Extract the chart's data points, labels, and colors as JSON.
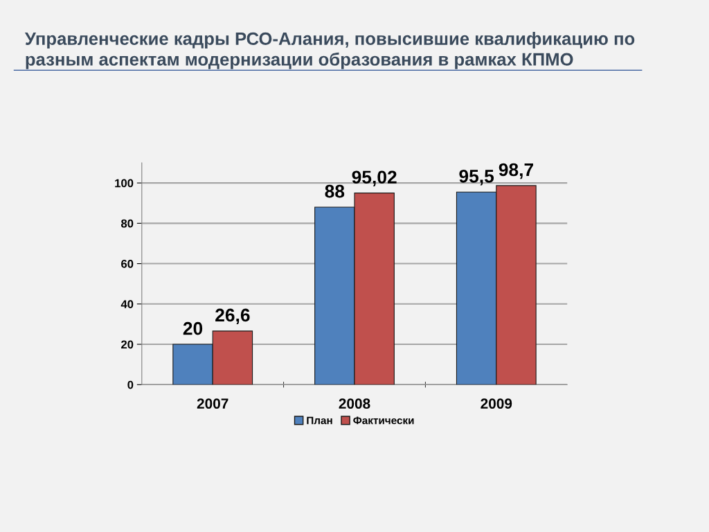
{
  "chart_data": {
    "type": "bar",
    "title": "Управленческие кадры РСО-Алания, повысившие квалификацию по разным аспектам модернизации образования в рамках КПМО",
    "categories": [
      "2007",
      "2008",
      "2009"
    ],
    "series": [
      {
        "name": "План",
        "color": "#4f81bd",
        "values": [
          20,
          88,
          95.5
        ],
        "value_labels": [
          "20",
          "88",
          "95,5"
        ]
      },
      {
        "name": "Фактически",
        "color": "#c0504d",
        "values": [
          26.6,
          95.02,
          98.7
        ],
        "value_labels": [
          "26,6",
          "95,02",
          "98,7"
        ]
      }
    ],
    "ylim": [
      0,
      110
    ],
    "yticks": [
      0,
      20,
      40,
      60,
      80,
      100
    ],
    "grid": "y",
    "legend": "bottom"
  }
}
